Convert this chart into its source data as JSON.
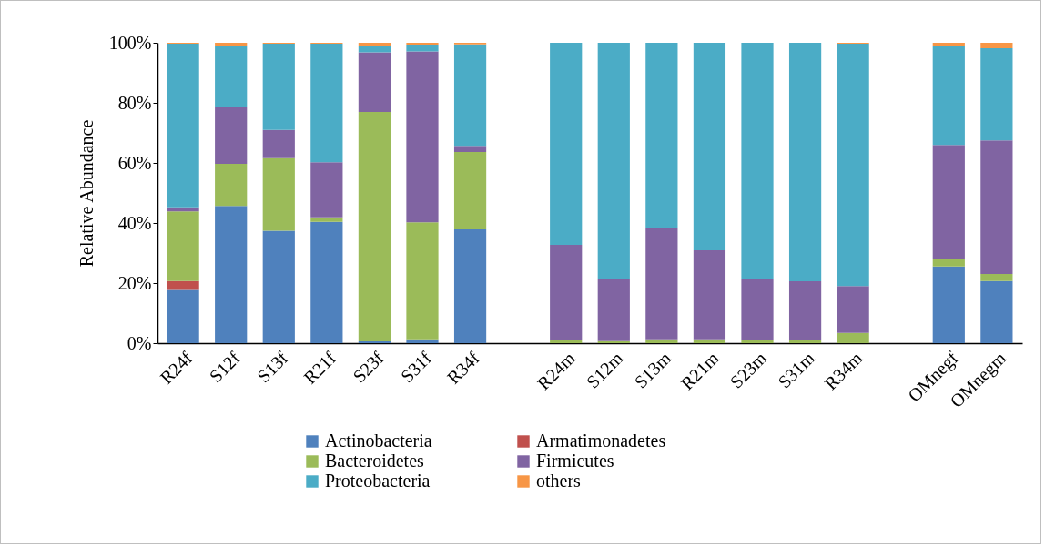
{
  "chart_data": {
    "type": "bar",
    "stacked": true,
    "ylabel": "Relative Abundance",
    "legend": "bottom",
    "grid": false,
    "categories": [
      "R24f",
      "S12f",
      "S13f",
      "R21f",
      "S23f",
      "S31f",
      "R34f",
      null,
      "R24m",
      "S12m",
      "S13m",
      "R21m",
      "S23m",
      "S31m",
      "R34m",
      null,
      "OMnegf",
      "OMnegm"
    ],
    "ylim": [
      0,
      100
    ],
    "yticks": [
      {
        "value": 0,
        "label": "0%"
      },
      {
        "value": 20,
        "label": "20%"
      },
      {
        "value": 40,
        "label": "40%"
      },
      {
        "value": 60,
        "label": "60%"
      },
      {
        "value": 80,
        "label": "80%"
      },
      {
        "value": 100,
        "label": "100%"
      }
    ],
    "series": [
      {
        "name": "Actinobacteria",
        "color": "#4f81bd",
        "values": [
          17.7,
          45.7,
          37.4,
          40.4,
          0.6,
          1.3,
          37.9,
          null,
          0,
          0,
          0,
          0,
          0,
          0,
          0,
          null,
          25.5,
          20.7
        ]
      },
      {
        "name": "Armatimonadetes",
        "color": "#c0504d",
        "values": [
          3.0,
          0,
          0,
          0,
          0,
          0,
          0,
          null,
          0,
          0,
          0,
          0,
          0,
          0,
          0,
          null,
          0,
          0
        ]
      },
      {
        "name": "Bacteroidetes",
        "color": "#9bbb59",
        "values": [
          23.2,
          14.0,
          24.2,
          1.5,
          76.4,
          38.9,
          25.7,
          null,
          1.0,
          0.7,
          1.3,
          1.3,
          1.0,
          1.0,
          3.4,
          null,
          2.7,
          2.3
        ]
      },
      {
        "name": "Firmicutes",
        "color": "#8064a2",
        "values": [
          1.3,
          19.0,
          9.4,
          18.3,
          19.8,
          56.9,
          2.1,
          null,
          31.7,
          20.8,
          36.9,
          29.6,
          20.5,
          19.6,
          15.6,
          null,
          37.8,
          44.5
        ]
      },
      {
        "name": "Proteobacteria",
        "color": "#4bacc6",
        "values": [
          54.5,
          20.3,
          28.7,
          39.5,
          2.1,
          2.3,
          33.8,
          null,
          67.3,
          78.5,
          61.8,
          69.1,
          78.5,
          79.4,
          80.7,
          null,
          32.8,
          30.7
        ]
      },
      {
        "name": "others",
        "color": "#f79646",
        "values": [
          0.3,
          1.0,
          0.3,
          0.3,
          1.1,
          0.6,
          0.5,
          null,
          0,
          0,
          0,
          0,
          0,
          0,
          0.3,
          null,
          1.2,
          1.8
        ]
      }
    ]
  }
}
